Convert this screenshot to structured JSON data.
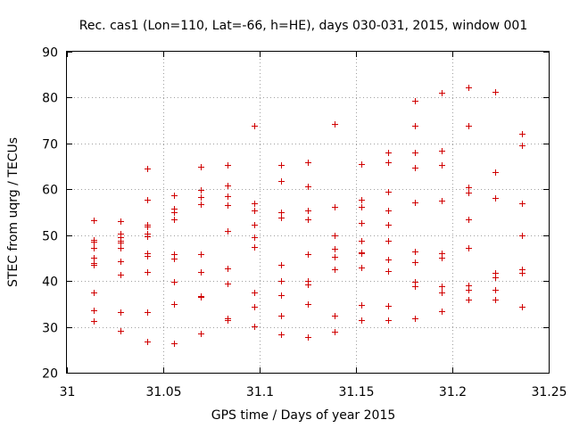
{
  "chart_data": {
    "type": "scatter",
    "title": "Rec. cas1 (Lon=110, Lat=-66, h=HE), days 030-031, 2015, window 001",
    "xlabel": "GPS time / Days of year 2015",
    "ylabel": "STEC from uqrg / TECUs",
    "xlim": [
      31,
      31.25
    ],
    "ylim": [
      20,
      90
    ],
    "xticks": [
      "31",
      "31.05",
      "31.1",
      "31.15",
      "31.2",
      "31.25"
    ],
    "yticks": [
      "20",
      "30",
      "40",
      "50",
      "60",
      "70",
      "80",
      "90"
    ],
    "grid": true,
    "marker": "plus",
    "color": "#d00000",
    "series": [
      {
        "points": [
          [
            31.0139,
            53.2
          ],
          [
            31.0139,
            49.0
          ],
          [
            31.0139,
            48.5
          ],
          [
            31.0139,
            47.2
          ],
          [
            31.0139,
            45.0
          ],
          [
            31.0139,
            44.0
          ],
          [
            31.0139,
            43.5
          ],
          [
            31.0139,
            37.5
          ],
          [
            31.0139,
            33.7
          ],
          [
            31.0139,
            31.2
          ],
          [
            31.0278,
            53.0
          ],
          [
            31.0278,
            50.3
          ],
          [
            31.0278,
            49.5
          ],
          [
            31.0278,
            48.8
          ],
          [
            31.0278,
            48.3
          ],
          [
            31.0278,
            47.3
          ],
          [
            31.0278,
            44.3
          ],
          [
            31.0278,
            41.3
          ],
          [
            31.0278,
            33.2
          ],
          [
            31.0278,
            29.2
          ],
          [
            31.0417,
            64.5
          ],
          [
            31.0417,
            57.7
          ],
          [
            31.0417,
            52.3
          ],
          [
            31.0417,
            51.8
          ],
          [
            31.0417,
            50.3
          ],
          [
            31.0417,
            49.8
          ],
          [
            31.0417,
            46.0
          ],
          [
            31.0417,
            45.5
          ],
          [
            31.0417,
            42.0
          ],
          [
            31.0417,
            33.3
          ],
          [
            31.0417,
            26.8
          ],
          [
            31.0556,
            58.7
          ],
          [
            31.0556,
            55.7
          ],
          [
            31.0556,
            55.0
          ],
          [
            31.0556,
            53.5
          ],
          [
            31.0556,
            45.8
          ],
          [
            31.0556,
            44.8
          ],
          [
            31.0556,
            39.8
          ],
          [
            31.0556,
            35.0
          ],
          [
            31.0556,
            26.5
          ],
          [
            31.0694,
            65.0
          ],
          [
            31.0694,
            59.8
          ],
          [
            31.0694,
            58.3
          ],
          [
            31.0694,
            56.7
          ],
          [
            31.0694,
            45.8
          ],
          [
            31.0694,
            42.0
          ],
          [
            31.0694,
            36.7
          ],
          [
            31.0694,
            36.5
          ],
          [
            31.0694,
            28.5
          ],
          [
            31.0833,
            65.3
          ],
          [
            31.0833,
            60.8
          ],
          [
            31.0833,
            58.5
          ],
          [
            31.0833,
            56.5
          ],
          [
            31.0833,
            51.0
          ],
          [
            31.0833,
            42.8
          ],
          [
            31.0833,
            39.5
          ],
          [
            31.0833,
            31.8
          ],
          [
            31.0833,
            31.5
          ],
          [
            31.0972,
            73.8
          ],
          [
            31.0972,
            57.0
          ],
          [
            31.0972,
            55.3
          ],
          [
            31.0972,
            52.3
          ],
          [
            31.0972,
            49.5
          ],
          [
            31.0972,
            47.5
          ],
          [
            31.0972,
            37.5
          ],
          [
            31.0972,
            34.3
          ],
          [
            31.0972,
            30.2
          ],
          [
            31.1111,
            65.3
          ],
          [
            31.1111,
            61.8
          ],
          [
            31.1111,
            55.0
          ],
          [
            31.1111,
            53.8
          ],
          [
            31.1111,
            43.5
          ],
          [
            31.1111,
            40.0
          ],
          [
            31.1111,
            37.0
          ],
          [
            31.1111,
            32.5
          ],
          [
            31.1111,
            28.3
          ],
          [
            31.125,
            65.8
          ],
          [
            31.125,
            60.7
          ],
          [
            31.125,
            55.3
          ],
          [
            31.125,
            53.5
          ],
          [
            31.125,
            45.8
          ],
          [
            31.125,
            40.0
          ],
          [
            31.125,
            39.3
          ],
          [
            31.125,
            35.0
          ],
          [
            31.125,
            27.8
          ],
          [
            31.1389,
            74.2
          ],
          [
            31.1389,
            56.2
          ],
          [
            31.1389,
            50.0
          ],
          [
            31.1389,
            47.0
          ],
          [
            31.1389,
            45.3
          ],
          [
            31.1389,
            42.5
          ],
          [
            31.1389,
            32.5
          ],
          [
            31.1389,
            29.0
          ],
          [
            31.1528,
            65.5
          ],
          [
            31.1528,
            57.7
          ],
          [
            31.1528,
            56.2
          ],
          [
            31.1528,
            52.7
          ],
          [
            31.1528,
            48.7
          ],
          [
            31.1528,
            46.3
          ],
          [
            31.1528,
            46.0
          ],
          [
            31.1528,
            43.0
          ],
          [
            31.1528,
            34.7
          ],
          [
            31.1528,
            31.5
          ],
          [
            31.1667,
            68.0
          ],
          [
            31.1667,
            65.8
          ],
          [
            31.1667,
            59.5
          ],
          [
            31.1667,
            55.3
          ],
          [
            31.1667,
            52.2
          ],
          [
            31.1667,
            48.8
          ],
          [
            31.1667,
            44.7
          ],
          [
            31.1667,
            42.2
          ],
          [
            31.1667,
            34.5
          ],
          [
            31.1667,
            31.5
          ],
          [
            31.1806,
            79.3
          ],
          [
            31.1806,
            73.8
          ],
          [
            31.1806,
            68.0
          ],
          [
            31.1806,
            64.7
          ],
          [
            31.1806,
            57.2
          ],
          [
            31.1806,
            46.5
          ],
          [
            31.1806,
            44.2
          ],
          [
            31.1806,
            39.8
          ],
          [
            31.1806,
            38.8
          ],
          [
            31.1806,
            31.8
          ],
          [
            31.1944,
            81.0
          ],
          [
            31.1944,
            68.5
          ],
          [
            31.1944,
            65.3
          ],
          [
            31.1944,
            57.5
          ],
          [
            31.1944,
            46.0
          ],
          [
            31.1944,
            45.0
          ],
          [
            31.1944,
            38.8
          ],
          [
            31.1944,
            37.5
          ],
          [
            31.1944,
            33.5
          ],
          [
            31.2083,
            82.3
          ],
          [
            31.2083,
            73.8
          ],
          [
            31.2083,
            60.5
          ],
          [
            31.2083,
            59.3
          ],
          [
            31.2083,
            53.5
          ],
          [
            31.2083,
            47.3
          ],
          [
            31.2083,
            39.0
          ],
          [
            31.2083,
            38.0
          ],
          [
            31.2083,
            36.0
          ],
          [
            31.2222,
            81.2
          ],
          [
            31.2222,
            63.7
          ],
          [
            31.2222,
            58.2
          ],
          [
            31.2222,
            41.8
          ],
          [
            31.2222,
            40.8
          ],
          [
            31.2222,
            38.0
          ],
          [
            31.2222,
            36.0
          ],
          [
            31.2361,
            72.2
          ],
          [
            31.2361,
            69.5
          ],
          [
            31.2361,
            57.0
          ],
          [
            31.2361,
            50.0
          ],
          [
            31.2361,
            42.5
          ],
          [
            31.2361,
            41.8
          ],
          [
            31.2361,
            34.3
          ]
        ]
      }
    ]
  }
}
